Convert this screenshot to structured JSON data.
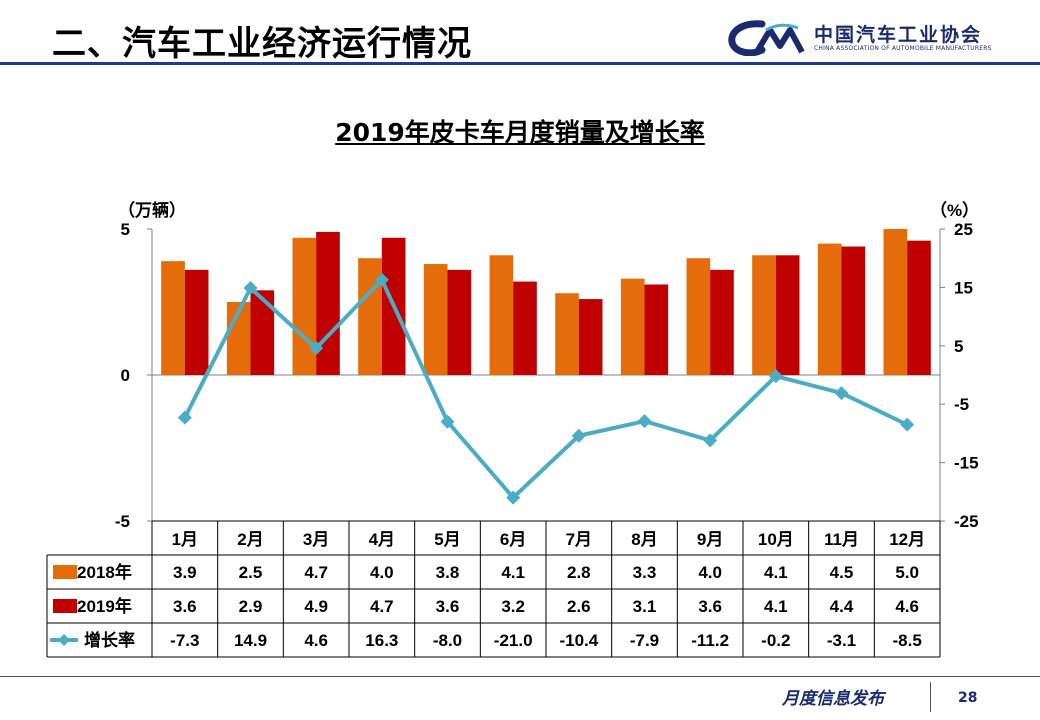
{
  "header": {
    "title": "二、汽车工业经济运行情况",
    "logo_cn": "中国汽车工业协会",
    "logo_en": "CHINA ASSOCIATION OF AUTOMOBILE MANUFACTURERS"
  },
  "colors": {
    "series_2018": "#E46C0A",
    "series_2019": "#C00000",
    "growth_line": "#4BACC6",
    "brand": "#1A2A6C"
  },
  "chart_data": {
    "type": "bar",
    "title": "2019年皮卡车月度销量及增长率",
    "y_left_unit": "（万辆）",
    "y_right_unit": "（%）",
    "y_left_range": [
      -5,
      5
    ],
    "y_left_ticks": [
      5,
      0,
      -5
    ],
    "y_right_range": [
      -25,
      25
    ],
    "y_right_ticks": [
      25,
      15,
      5,
      -5,
      -15,
      -25
    ],
    "categories": [
      "1月",
      "2月",
      "3月",
      "4月",
      "5月",
      "6月",
      "7月",
      "8月",
      "9月",
      "10月",
      "11月",
      "12月"
    ],
    "series": [
      {
        "name": "2018年",
        "kind": "bar",
        "axis": "left",
        "values": [
          "3.9",
          "2.5",
          "4.7",
          "4.0",
          "3.8",
          "4.1",
          "2.8",
          "3.3",
          "4.0",
          "4.1",
          "4.5",
          "5.0"
        ]
      },
      {
        "name": "2019年",
        "kind": "bar",
        "axis": "left",
        "values": [
          "3.6",
          "2.9",
          "4.9",
          "4.7",
          "3.6",
          "3.2",
          "2.6",
          "3.1",
          "3.6",
          "4.1",
          "4.4",
          "4.6"
        ]
      },
      {
        "name": "增长率",
        "kind": "line",
        "axis": "right",
        "values": [
          "-7.3",
          "14.9",
          "4.6",
          "16.3",
          "-8.0",
          "-21.0",
          "-10.4",
          "-7.9",
          "-11.2",
          "-0.2",
          "-3.1",
          "-8.5"
        ]
      }
    ]
  },
  "footer": {
    "label": "月度信息发布",
    "page_number": "28"
  }
}
